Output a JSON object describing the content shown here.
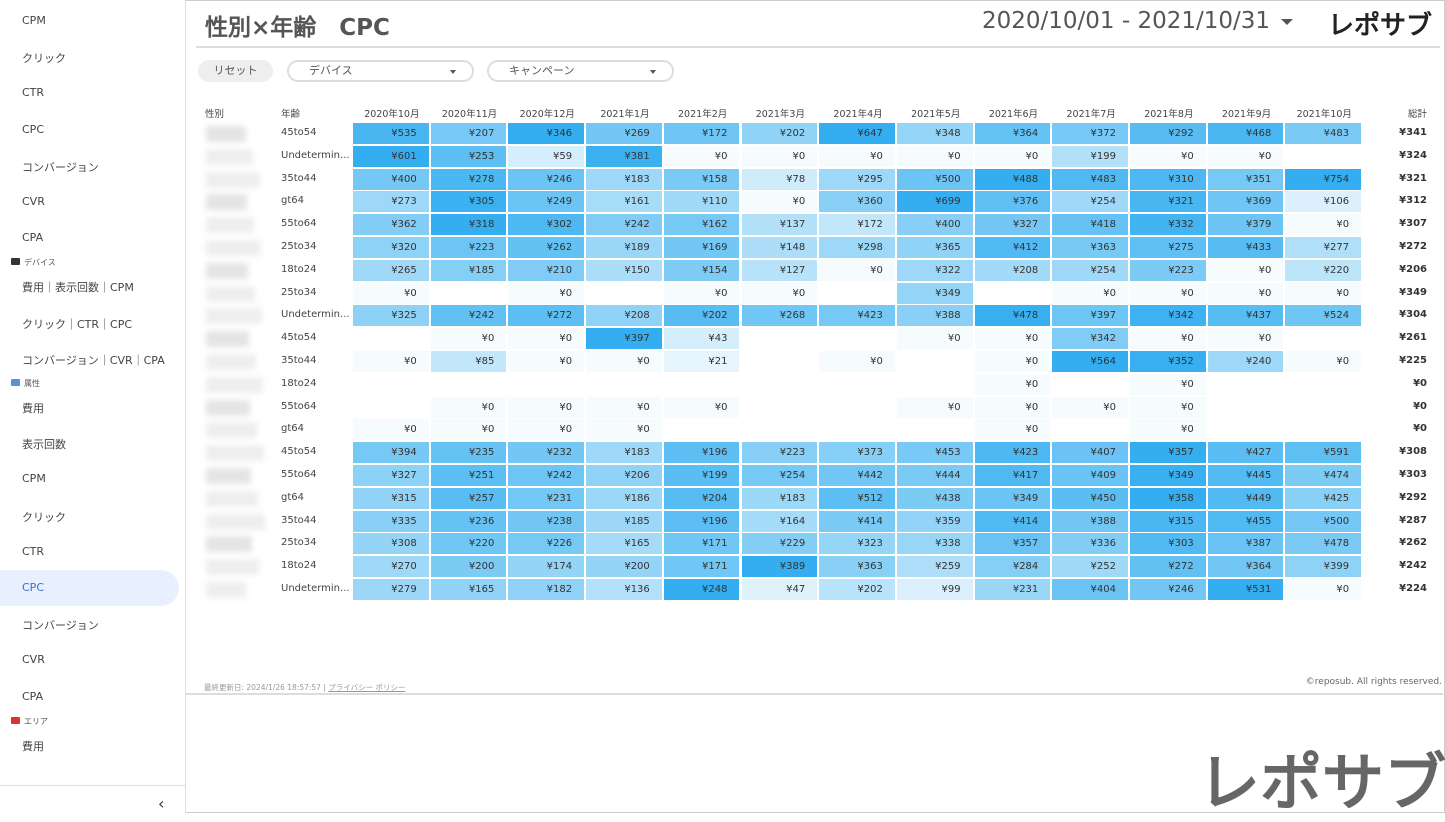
{
  "sidebar": [
    {
      "items": [
        "CPM",
        "クリック",
        "CTR",
        "CPC",
        "コンバージョン",
        "CVR",
        "CPA"
      ]
    },
    {
      "section": "デバイス",
      "items": [
        "費用｜表示回数｜CPM",
        "クリック｜CTR｜CPC",
        "コンバージョン｜CVR｜CPA"
      ]
    },
    {
      "section": "属性",
      "items": [
        "費用",
        "表示回数",
        "CPM",
        "クリック",
        "CTR",
        "CPC",
        "コンバージョン",
        "CVR",
        "CPA"
      ]
    },
    {
      "section": "エリア",
      "items": [
        "費用"
      ]
    }
  ],
  "header": {
    "title": "性別×年齢　CPC",
    "date_range": "2020/10/01 - 2021/10/31",
    "logo": "レポサブ"
  },
  "filters": {
    "reset": "リセット",
    "device": "デバイス",
    "campaign": "キャンペーン"
  },
  "table": {
    "gender_header": "性別",
    "age_header": "年齢",
    "months": [
      "2020年10月",
      "2020年11月",
      "2020年12月",
      "2021年1月",
      "2021年2月",
      "2021年3月",
      "2021年4月",
      "2021年5月",
      "2021年6月",
      "2021年7月",
      "2021年8月",
      "2021年9月",
      "2021年10月"
    ],
    "total_header": "総計",
    "rows": [
      {
        "age": "45to54",
        "values": [
          535,
          207,
          346,
          269,
          172,
          202,
          647,
          348,
          364,
          372,
          292,
          468,
          483
        ],
        "value_labels": [
          "¥535",
          "¥207",
          "¥346",
          "¥269",
          "¥172",
          "¥202",
          "¥647",
          "¥348",
          "¥364",
          "¥372",
          "¥292",
          "¥468",
          "¥483"
        ],
        "total": 341,
        "total_label": "¥341"
      },
      {
        "age": "Undetermin...",
        "values": [
          601,
          253,
          59,
          381,
          0,
          0,
          0,
          0,
          0,
          199,
          0,
          0,
          null
        ],
        "value_labels": [
          "¥601",
          "¥253",
          "¥59",
          "¥381",
          "¥0",
          "¥0",
          "¥0",
          "¥0",
          "¥0",
          "¥199",
          "¥0",
          "¥0",
          null
        ],
        "total": 324,
        "total_label": "¥324"
      },
      {
        "age": "35to44",
        "values": [
          400,
          278,
          246,
          183,
          158,
          78,
          295,
          500,
          488,
          483,
          310,
          351,
          754
        ],
        "value_labels": [
          "¥400",
          "¥278",
          "¥246",
          "¥183",
          "¥158",
          "¥78",
          "¥295",
          "¥500",
          "¥488",
          "¥483",
          "¥310",
          "¥351",
          "¥754"
        ],
        "total": 321,
        "total_label": "¥321"
      },
      {
        "age": "gt64",
        "values": [
          273,
          305,
          249,
          161,
          110,
          0,
          360,
          699,
          376,
          254,
          321,
          369,
          106
        ],
        "value_labels": [
          "¥273",
          "¥305",
          "¥249",
          "¥161",
          "¥110",
          "¥0",
          "¥360",
          "¥699",
          "¥376",
          "¥254",
          "¥321",
          "¥369",
          "¥106"
        ],
        "total": 312,
        "total_label": "¥312"
      },
      {
        "age": "55to64",
        "values": [
          362,
          318,
          302,
          242,
          162,
          137,
          172,
          400,
          327,
          418,
          332,
          379,
          0
        ],
        "value_labels": [
          "¥362",
          "¥318",
          "¥302",
          "¥242",
          "¥162",
          "¥137",
          "¥172",
          "¥400",
          "¥327",
          "¥418",
          "¥332",
          "¥379",
          "¥0"
        ],
        "total": 307,
        "total_label": "¥307"
      },
      {
        "age": "25to34",
        "values": [
          320,
          223,
          262,
          189,
          169,
          148,
          298,
          365,
          412,
          363,
          275,
          433,
          277
        ],
        "value_labels": [
          "¥320",
          "¥223",
          "¥262",
          "¥189",
          "¥169",
          "¥148",
          "¥298",
          "¥365",
          "¥412",
          "¥363",
          "¥275",
          "¥433",
          "¥277"
        ],
        "total": 272,
        "total_label": "¥272"
      },
      {
        "age": "18to24",
        "values": [
          265,
          185,
          210,
          150,
          154,
          127,
          0,
          322,
          208,
          254,
          223,
          0,
          220
        ],
        "value_labels": [
          "¥265",
          "¥185",
          "¥210",
          "¥150",
          "¥154",
          "¥127",
          "¥0",
          "¥322",
          "¥208",
          "¥254",
          "¥223",
          "¥0",
          "¥220"
        ],
        "total": 206,
        "total_label": "¥206"
      },
      {
        "age": "25to34",
        "values": [
          0,
          null,
          0,
          null,
          0,
          0,
          null,
          349,
          null,
          0,
          0,
          0,
          0
        ],
        "value_labels": [
          "¥0",
          null,
          "¥0",
          null,
          "¥0",
          "¥0",
          null,
          "¥349",
          null,
          "¥0",
          "¥0",
          "¥0",
          "¥0"
        ],
        "total": 349,
        "total_label": "¥349"
      },
      {
        "age": "Undetermin...",
        "values": [
          325,
          242,
          272,
          208,
          202,
          268,
          423,
          388,
          478,
          397,
          342,
          437,
          524
        ],
        "value_labels": [
          "¥325",
          "¥242",
          "¥272",
          "¥208",
          "¥202",
          "¥268",
          "¥423",
          "¥388",
          "¥478",
          "¥397",
          "¥342",
          "¥437",
          "¥524"
        ],
        "total": 304,
        "total_label": "¥304"
      },
      {
        "age": "45to54",
        "values": [
          null,
          0,
          0,
          397,
          43,
          null,
          null,
          0,
          0,
          342,
          0,
          0,
          null
        ],
        "value_labels": [
          null,
          "¥0",
          "¥0",
          "¥397",
          "¥43",
          null,
          null,
          "¥0",
          "¥0",
          "¥342",
          "¥0",
          "¥0",
          null
        ],
        "total": 261,
        "total_label": "¥261"
      },
      {
        "age": "35to44",
        "values": [
          0,
          85,
          0,
          0,
          21,
          null,
          0,
          null,
          0,
          564,
          352,
          240,
          0
        ],
        "value_labels": [
          "¥0",
          "¥85",
          "¥0",
          "¥0",
          "¥21",
          null,
          "¥0",
          null,
          "¥0",
          "¥564",
          "¥352",
          "¥240",
          "¥0"
        ],
        "total": 225,
        "total_label": "¥225"
      },
      {
        "age": "18to24",
        "values": [
          null,
          null,
          null,
          null,
          null,
          null,
          null,
          null,
          0,
          null,
          0,
          null,
          null
        ],
        "value_labels": [
          null,
          null,
          null,
          null,
          null,
          null,
          null,
          null,
          "¥0",
          null,
          "¥0",
          null,
          null
        ],
        "total": 0,
        "total_label": "¥0"
      },
      {
        "age": "55to64",
        "values": [
          null,
          0,
          0,
          0,
          0,
          null,
          null,
          0,
          0,
          0,
          0,
          null,
          null
        ],
        "value_labels": [
          null,
          "¥0",
          "¥0",
          "¥0",
          "¥0",
          null,
          null,
          "¥0",
          "¥0",
          "¥0",
          "¥0",
          null,
          null
        ],
        "total": 0,
        "total_label": "¥0"
      },
      {
        "age": "gt64",
        "values": [
          0,
          0,
          0,
          0,
          null,
          null,
          null,
          null,
          0,
          null,
          0,
          null,
          null
        ],
        "value_labels": [
          "¥0",
          "¥0",
          "¥0",
          "¥0",
          null,
          null,
          null,
          null,
          "¥0",
          null,
          "¥0",
          null,
          null
        ],
        "total": 0,
        "total_label": "¥0"
      },
      {
        "age": "45to54",
        "values": [
          394,
          235,
          232,
          183,
          196,
          223,
          373,
          453,
          423,
          407,
          357,
          427,
          591
        ],
        "value_labels": [
          "¥394",
          "¥235",
          "¥232",
          "¥183",
          "¥196",
          "¥223",
          "¥373",
          "¥453",
          "¥423",
          "¥407",
          "¥357",
          "¥427",
          "¥591"
        ],
        "total": 308,
        "total_label": "¥308"
      },
      {
        "age": "55to64",
        "values": [
          327,
          251,
          242,
          206,
          199,
          254,
          442,
          444,
          417,
          409,
          349,
          445,
          474
        ],
        "value_labels": [
          "¥327",
          "¥251",
          "¥242",
          "¥206",
          "¥199",
          "¥254",
          "¥442",
          "¥444",
          "¥417",
          "¥409",
          "¥349",
          "¥445",
          "¥474"
        ],
        "total": 303,
        "total_label": "¥303"
      },
      {
        "age": "gt64",
        "values": [
          315,
          257,
          231,
          186,
          204,
          183,
          512,
          438,
          349,
          450,
          358,
          449,
          425
        ],
        "value_labels": [
          "¥315",
          "¥257",
          "¥231",
          "¥186",
          "¥204",
          "¥183",
          "¥512",
          "¥438",
          "¥349",
          "¥450",
          "¥358",
          "¥449",
          "¥425"
        ],
        "total": 292,
        "total_label": "¥292"
      },
      {
        "age": "35to44",
        "values": [
          335,
          236,
          238,
          185,
          196,
          164,
          414,
          359,
          414,
          388,
          315,
          455,
          500
        ],
        "value_labels": [
          "¥335",
          "¥236",
          "¥238",
          "¥185",
          "¥196",
          "¥164",
          "¥414",
          "¥359",
          "¥414",
          "¥388",
          "¥315",
          "¥455",
          "¥500"
        ],
        "total": 287,
        "total_label": "¥287"
      },
      {
        "age": "25to34",
        "values": [
          308,
          220,
          226,
          165,
          171,
          229,
          323,
          338,
          357,
          336,
          303,
          387,
          478
        ],
        "value_labels": [
          "¥308",
          "¥220",
          "¥226",
          "¥165",
          "¥171",
          "¥229",
          "¥323",
          "¥338",
          "¥357",
          "¥336",
          "¥303",
          "¥387",
          "¥478"
        ],
        "total": 262,
        "total_label": "¥262"
      },
      {
        "age": "18to24",
        "values": [
          270,
          200,
          174,
          200,
          171,
          389,
          363,
          259,
          284,
          252,
          272,
          364,
          399
        ],
        "value_labels": [
          "¥270",
          "¥200",
          "¥174",
          "¥200",
          "¥171",
          "¥389",
          "¥363",
          "¥259",
          "¥284",
          "¥252",
          "¥272",
          "¥364",
          "¥399"
        ],
        "total": 242,
        "total_label": "¥242"
      },
      {
        "age": "Undetermin...",
        "values": [
          279,
          165,
          182,
          136,
          248,
          47,
          202,
          99,
          231,
          404,
          246,
          531,
          0
        ],
        "value_labels": [
          "¥279",
          "¥165",
          "¥182",
          "¥136",
          "¥248",
          "¥47",
          "¥202",
          "¥99",
          "¥231",
          "¥404",
          "¥246",
          "¥531",
          "¥0"
        ],
        "total": 224,
        "total_label": "¥224"
      }
    ]
  },
  "footer": {
    "updated": "最終更新日: 2024/1/26 18:57:57",
    "privacy": "プライバシー ポリシー",
    "copyright": "©reposub. All rights reserved."
  },
  "watermark_logo": "レポサブ"
}
